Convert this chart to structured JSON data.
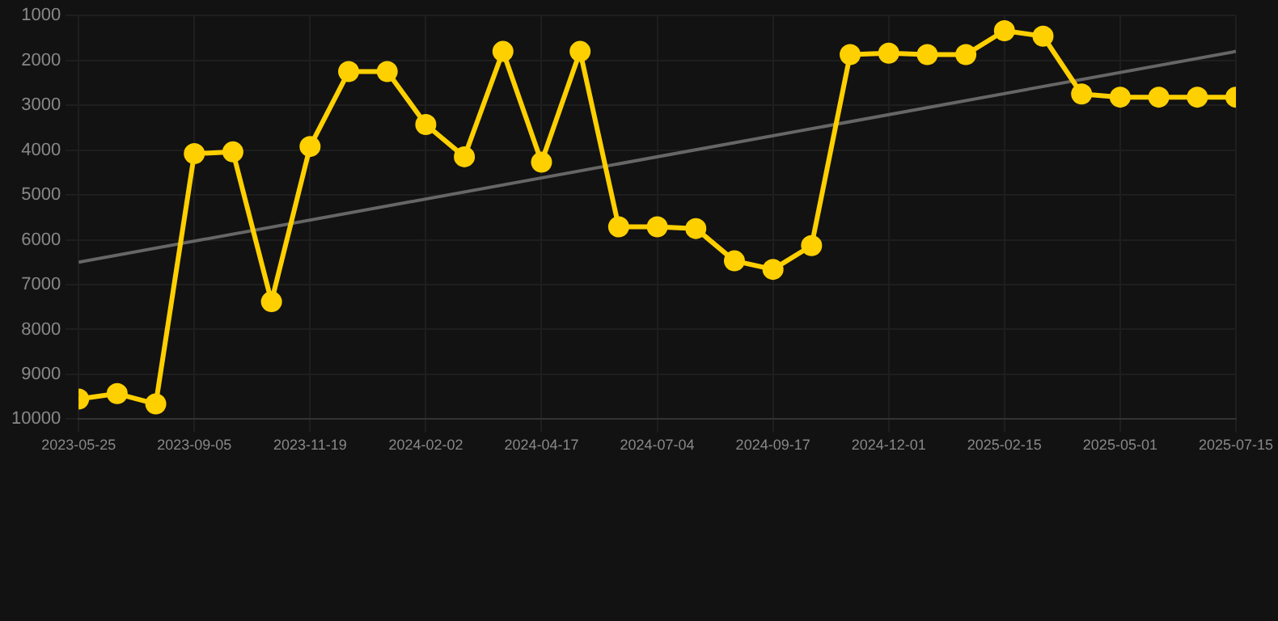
{
  "chart_data": {
    "type": "line",
    "categories": [
      "2023-05-25",
      null,
      null,
      "2023-09-05",
      null,
      null,
      "2023-11-19",
      null,
      null,
      "2024-02-02",
      null,
      null,
      "2024-04-17",
      null,
      null,
      "2024-07-04",
      null,
      null,
      "2024-09-17",
      null,
      null,
      "2024-12-01",
      null,
      null,
      "2025-02-15",
      null,
      null,
      "2025-05-01",
      null,
      null,
      "2025-07-15"
    ],
    "series": [
      {
        "color": "#ffd000",
        "values": [
          9550,
          9430,
          9660,
          4080,
          4040,
          7380,
          3920,
          2250,
          2250,
          3430,
          4150,
          1800,
          4270,
          1800,
          5710,
          5710,
          5750,
          6470,
          6660,
          6130,
          1870,
          1840,
          1870,
          1870,
          1340,
          1460,
          2750,
          2820,
          2820,
          2820,
          2820
        ]
      },
      {
        "type": "line",
        "marker": "none",
        "color": "#666666",
        "values": [
          6500,
          null,
          null,
          null,
          null,
          null,
          null,
          null,
          null,
          null,
          null,
          null,
          null,
          null,
          null,
          null,
          null,
          null,
          null,
          null,
          null,
          null,
          null,
          null,
          null,
          null,
          null,
          null,
          null,
          null,
          1800
        ]
      }
    ],
    "ylim": [
      10000,
      1000
    ],
    "yticks": [
      1000,
      2000,
      3000,
      4000,
      5000,
      6000,
      7000,
      8000,
      9000,
      10000
    ],
    "grid": true,
    "legend": false,
    "marker": "circle"
  }
}
